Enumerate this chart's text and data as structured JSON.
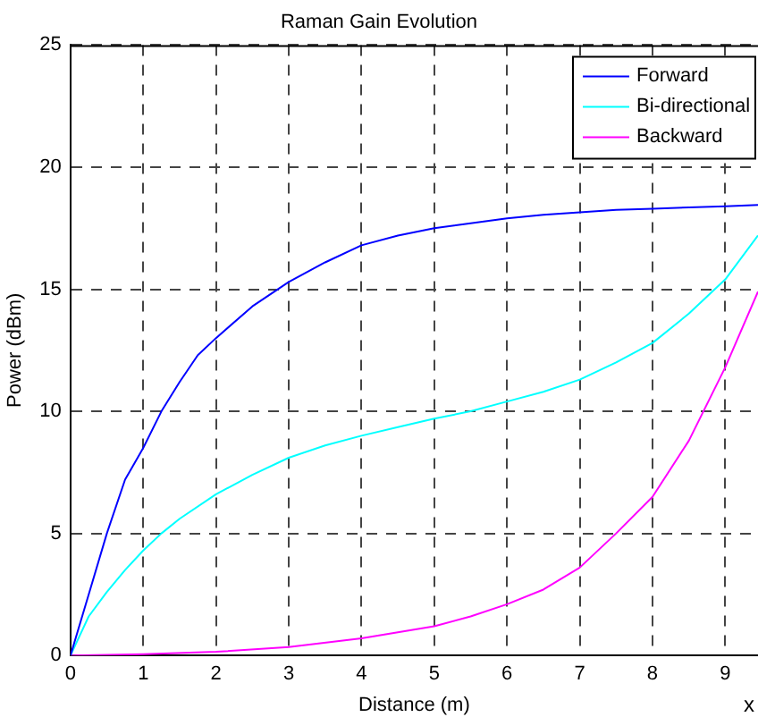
{
  "chart_data": {
    "type": "line",
    "title": "Raman Gain Evolution",
    "xlabel": "Distance (m)",
    "ylabel": "Power (dBm)",
    "annotations": [
      "x"
    ],
    "xlim": [
      0,
      9.45
    ],
    "xticks": [
      0,
      1,
      2,
      3,
      4,
      5,
      6,
      7,
      8,
      9
    ],
    "ylim": [
      0,
      25
    ],
    "yticks": [
      0,
      5,
      10,
      15,
      20,
      25
    ],
    "grid": true,
    "legend": "top right",
    "line_style": "solid",
    "marker": "none",
    "series": [
      {
        "name": "Forward",
        "color": "#0000ff",
        "x": [
          0,
          0.25,
          0.5,
          0.75,
          1,
          1.25,
          1.5,
          1.75,
          2,
          2.5,
          3,
          3.5,
          4,
          4.5,
          5,
          5.5,
          6,
          6.5,
          7,
          7.5,
          8,
          8.5,
          9,
          9.45
        ],
        "values": [
          0,
          2.5,
          5,
          7.2,
          8.5,
          10,
          11.2,
          12.3,
          13,
          14.3,
          15.3,
          16.1,
          16.8,
          17.2,
          17.5,
          17.7,
          17.9,
          18.05,
          18.15,
          18.25,
          18.3,
          18.35,
          18.4,
          18.45
        ]
      },
      {
        "name": "Bi-directional",
        "color": "#00ffff",
        "x": [
          0,
          0.25,
          0.5,
          0.75,
          1,
          1.25,
          1.5,
          2,
          2.5,
          3,
          3.5,
          4,
          4.5,
          5,
          5.5,
          6,
          6.5,
          7,
          7.5,
          8,
          8.5,
          9,
          9.45
        ],
        "values": [
          0,
          1.6,
          2.6,
          3.5,
          4.3,
          5,
          5.6,
          6.6,
          7.4,
          8.1,
          8.6,
          9,
          9.35,
          9.7,
          10,
          10.4,
          10.8,
          11.3,
          12,
          12.8,
          14,
          15.4,
          17.2
        ]
      },
      {
        "name": "Backward",
        "color": "#ff00ff",
        "x": [
          0,
          1,
          2,
          3,
          4,
          4.5,
          5,
          5.5,
          6,
          6.5,
          7,
          7.5,
          8,
          8.5,
          9,
          9.45
        ],
        "values": [
          0,
          0.05,
          0.15,
          0.35,
          0.7,
          0.95,
          1.2,
          1.6,
          2.1,
          2.7,
          3.6,
          5,
          6.5,
          8.8,
          11.8,
          14.9
        ]
      }
    ]
  }
}
